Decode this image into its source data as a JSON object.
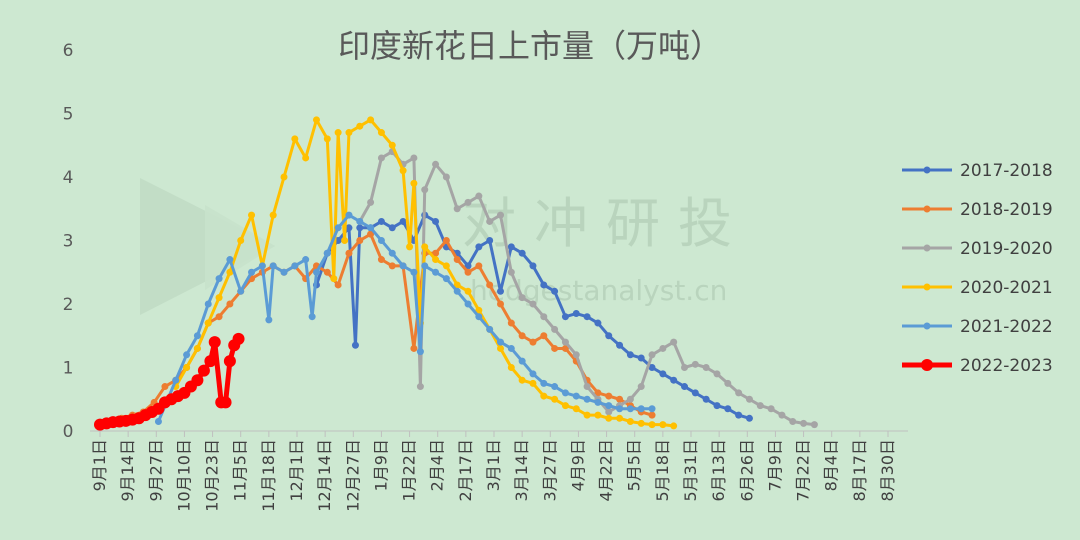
{
  "chart_data": {
    "type": "line",
    "title": "印度新花日上市量（万吨）",
    "xlabel": "",
    "ylabel": "",
    "ylim": [
      0,
      6
    ],
    "yticks": [
      "0",
      "1",
      "2",
      "3",
      "4",
      "5",
      "6"
    ],
    "x_tick_labels": [
      "9月1日",
      "9月14日",
      "9月27日",
      "10月10日",
      "10月23日",
      "11月5日",
      "11月18日",
      "12月1日",
      "12月14日",
      "12月27日",
      "1月9日",
      "1月22日",
      "2月4日",
      "2月17日",
      "3月1日",
      "3月14日",
      "3月27日",
      "4月9日",
      "4月22日",
      "5月5日",
      "5月18日",
      "5月31日",
      "6月13日",
      "6月26日",
      "7月9日",
      "7月22日",
      "8月4日",
      "8月17日",
      "8月30日"
    ],
    "x_unit": "day index counted from 9月1日 (0 = 9月1日, 13 = 9月14日, …)",
    "legend_position": "right",
    "grid": false,
    "series": [
      {
        "name": "2017-2018",
        "color": "#4472c4",
        "linewidth": 3,
        "marker": 7,
        "points": [
          [
            100,
            2.3
          ],
          [
            105,
            2.8
          ],
          [
            110,
            3.0
          ],
          [
            115,
            3.2
          ],
          [
            118,
            1.35
          ],
          [
            120,
            3.2
          ],
          [
            125,
            3.2
          ],
          [
            130,
            3.3
          ],
          [
            135,
            3.2
          ],
          [
            140,
            3.3
          ],
          [
            145,
            3.0
          ],
          [
            150,
            3.4
          ],
          [
            155,
            3.3
          ],
          [
            160,
            2.9
          ],
          [
            165,
            2.8
          ],
          [
            170,
            2.6
          ],
          [
            175,
            2.9
          ],
          [
            180,
            3.0
          ],
          [
            185,
            2.2
          ],
          [
            190,
            2.9
          ],
          [
            195,
            2.8
          ],
          [
            200,
            2.6
          ],
          [
            205,
            2.3
          ],
          [
            210,
            2.2
          ],
          [
            215,
            1.8
          ],
          [
            220,
            1.85
          ],
          [
            225,
            1.8
          ],
          [
            230,
            1.7
          ],
          [
            235,
            1.5
          ],
          [
            240,
            1.35
          ],
          [
            245,
            1.2
          ],
          [
            250,
            1.15
          ],
          [
            255,
            1.0
          ],
          [
            260,
            0.9
          ],
          [
            265,
            0.8
          ],
          [
            270,
            0.7
          ],
          [
            275,
            0.6
          ],
          [
            280,
            0.5
          ],
          [
            285,
            0.4
          ],
          [
            290,
            0.35
          ],
          [
            295,
            0.25
          ],
          [
            300,
            0.2
          ]
        ]
      },
      {
        "name": "2018-2019",
        "color": "#ed7d31",
        "linewidth": 3,
        "marker": 7,
        "points": [
          [
            5,
            0.15
          ],
          [
            10,
            0.2
          ],
          [
            15,
            0.25
          ],
          [
            20,
            0.3
          ],
          [
            25,
            0.45
          ],
          [
            30,
            0.7
          ],
          [
            35,
            0.8
          ],
          [
            40,
            1.0
          ],
          [
            45,
            1.3
          ],
          [
            50,
            1.7
          ],
          [
            55,
            1.8
          ],
          [
            60,
            2.0
          ],
          [
            65,
            2.2
          ],
          [
            70,
            2.4
          ],
          [
            75,
            2.5
          ],
          [
            80,
            2.6
          ],
          [
            85,
            2.5
          ],
          [
            90,
            2.6
          ],
          [
            95,
            2.4
          ],
          [
            100,
            2.6
          ],
          [
            105,
            2.5
          ],
          [
            110,
            2.3
          ],
          [
            115,
            2.8
          ],
          [
            120,
            3.0
          ],
          [
            125,
            3.1
          ],
          [
            130,
            2.7
          ],
          [
            135,
            2.6
          ],
          [
            140,
            2.6
          ],
          [
            145,
            1.3
          ],
          [
            150,
            2.8
          ],
          [
            155,
            2.8
          ],
          [
            160,
            3.0
          ],
          [
            165,
            2.7
          ],
          [
            170,
            2.5
          ],
          [
            175,
            2.6
          ],
          [
            180,
            2.3
          ],
          [
            185,
            2.0
          ],
          [
            190,
            1.7
          ],
          [
            195,
            1.5
          ],
          [
            200,
            1.4
          ],
          [
            205,
            1.5
          ],
          [
            210,
            1.3
          ],
          [
            215,
            1.3
          ],
          [
            220,
            1.1
          ],
          [
            225,
            0.8
          ],
          [
            230,
            0.6
          ],
          [
            235,
            0.55
          ],
          [
            240,
            0.5
          ],
          [
            245,
            0.4
          ],
          [
            250,
            0.3
          ],
          [
            255,
            0.25
          ]
        ]
      },
      {
        "name": "2019-2020",
        "color": "#a5a5a5",
        "linewidth": 3,
        "marker": 7,
        "points": [
          [
            120,
            3.3
          ],
          [
            125,
            3.6
          ],
          [
            130,
            4.3
          ],
          [
            135,
            4.4
          ],
          [
            140,
            4.2
          ],
          [
            145,
            4.3
          ],
          [
            148,
            0.7
          ],
          [
            150,
            3.8
          ],
          [
            155,
            4.2
          ],
          [
            160,
            4.0
          ],
          [
            165,
            3.5
          ],
          [
            170,
            3.6
          ],
          [
            175,
            3.7
          ],
          [
            180,
            3.3
          ],
          [
            185,
            3.4
          ],
          [
            190,
            2.5
          ],
          [
            195,
            2.1
          ],
          [
            200,
            2.0
          ],
          [
            205,
            1.8
          ],
          [
            210,
            1.6
          ],
          [
            215,
            1.4
          ],
          [
            220,
            1.2
          ],
          [
            225,
            0.7
          ],
          [
            230,
            0.5
          ],
          [
            235,
            0.3
          ],
          [
            240,
            0.4
          ],
          [
            245,
            0.5
          ],
          [
            250,
            0.7
          ],
          [
            255,
            1.2
          ],
          [
            260,
            1.3
          ],
          [
            265,
            1.4
          ],
          [
            270,
            1.0
          ],
          [
            275,
            1.05
          ],
          [
            280,
            1.0
          ],
          [
            285,
            0.9
          ],
          [
            290,
            0.75
          ],
          [
            295,
            0.6
          ],
          [
            300,
            0.5
          ],
          [
            305,
            0.4
          ],
          [
            310,
            0.35
          ],
          [
            315,
            0.25
          ],
          [
            320,
            0.15
          ],
          [
            325,
            0.12
          ],
          [
            330,
            0.1
          ]
        ]
      },
      {
        "name": "2020-2021",
        "color": "#ffc000",
        "linewidth": 3,
        "marker": 7,
        "points": [
          [
            35,
            0.7
          ],
          [
            40,
            1.0
          ],
          [
            45,
            1.3
          ],
          [
            50,
            1.7
          ],
          [
            55,
            2.1
          ],
          [
            60,
            2.5
          ],
          [
            65,
            3.0
          ],
          [
            70,
            3.4
          ],
          [
            75,
            2.6
          ],
          [
            80,
            3.4
          ],
          [
            85,
            4.0
          ],
          [
            90,
            4.6
          ],
          [
            95,
            4.3
          ],
          [
            100,
            4.9
          ],
          [
            105,
            4.6
          ],
          [
            108,
            2.4
          ],
          [
            110,
            4.7
          ],
          [
            113,
            3.0
          ],
          [
            115,
            4.7
          ],
          [
            120,
            4.8
          ],
          [
            125,
            4.9
          ],
          [
            130,
            4.7
          ],
          [
            135,
            4.5
          ],
          [
            140,
            4.1
          ],
          [
            143,
            2.9
          ],
          [
            145,
            3.9
          ],
          [
            148,
            1.7
          ],
          [
            150,
            2.9
          ],
          [
            155,
            2.7
          ],
          [
            160,
            2.6
          ],
          [
            165,
            2.3
          ],
          [
            170,
            2.2
          ],
          [
            175,
            1.9
          ],
          [
            180,
            1.6
          ],
          [
            185,
            1.3
          ],
          [
            190,
            1.0
          ],
          [
            195,
            0.8
          ],
          [
            200,
            0.75
          ],
          [
            205,
            0.55
          ],
          [
            210,
            0.5
          ],
          [
            215,
            0.4
          ],
          [
            220,
            0.35
          ],
          [
            225,
            0.25
          ],
          [
            230,
            0.25
          ],
          [
            235,
            0.2
          ],
          [
            240,
            0.2
          ],
          [
            245,
            0.15
          ],
          [
            250,
            0.12
          ],
          [
            255,
            0.1
          ],
          [
            260,
            0.1
          ],
          [
            265,
            0.08
          ]
        ]
      },
      {
        "name": "2021-2022",
        "color": "#5b9bd5",
        "linewidth": 3,
        "marker": 7,
        "points": [
          [
            27,
            0.15
          ],
          [
            35,
            0.8
          ],
          [
            40,
            1.2
          ],
          [
            45,
            1.5
          ],
          [
            50,
            2.0
          ],
          [
            55,
            2.4
          ],
          [
            60,
            2.7
          ],
          [
            65,
            2.2
          ],
          [
            70,
            2.5
          ],
          [
            75,
            2.6
          ],
          [
            78,
            1.75
          ],
          [
            80,
            2.6
          ],
          [
            85,
            2.5
          ],
          [
            90,
            2.6
          ],
          [
            95,
            2.7
          ],
          [
            98,
            1.8
          ],
          [
            100,
            2.5
          ],
          [
            105,
            2.8
          ],
          [
            110,
            3.2
          ],
          [
            115,
            3.4
          ],
          [
            120,
            3.3
          ],
          [
            125,
            3.2
          ],
          [
            130,
            3.0
          ],
          [
            135,
            2.8
          ],
          [
            140,
            2.6
          ],
          [
            145,
            2.5
          ],
          [
            148,
            1.25
          ],
          [
            150,
            2.6
          ],
          [
            155,
            2.5
          ],
          [
            160,
            2.4
          ],
          [
            165,
            2.2
          ],
          [
            170,
            2.0
          ],
          [
            175,
            1.8
          ],
          [
            180,
            1.6
          ],
          [
            185,
            1.4
          ],
          [
            190,
            1.3
          ],
          [
            195,
            1.1
          ],
          [
            200,
            0.9
          ],
          [
            205,
            0.75
          ],
          [
            210,
            0.7
          ],
          [
            215,
            0.6
          ],
          [
            220,
            0.55
          ],
          [
            225,
            0.5
          ],
          [
            230,
            0.45
          ],
          [
            235,
            0.4
          ],
          [
            240,
            0.35
          ],
          [
            245,
            0.35
          ],
          [
            250,
            0.35
          ],
          [
            255,
            0.35
          ]
        ]
      },
      {
        "name": "2022-2023",
        "color": "#ff0000",
        "linewidth": 5,
        "marker": 12,
        "points": [
          [
            0,
            0.1
          ],
          [
            3,
            0.12
          ],
          [
            6,
            0.14
          ],
          [
            9,
            0.15
          ],
          [
            12,
            0.16
          ],
          [
            15,
            0.18
          ],
          [
            18,
            0.2
          ],
          [
            21,
            0.25
          ],
          [
            24,
            0.3
          ],
          [
            27,
            0.35
          ],
          [
            30,
            0.45
          ],
          [
            33,
            0.5
          ],
          [
            36,
            0.55
          ],
          [
            39,
            0.6
          ],
          [
            42,
            0.7
          ],
          [
            45,
            0.8
          ],
          [
            48,
            0.95
          ],
          [
            51,
            1.1
          ],
          [
            53,
            1.4
          ],
          [
            56,
            0.45
          ],
          [
            58,
            0.45
          ],
          [
            60,
            1.1
          ],
          [
            62,
            1.35
          ],
          [
            64,
            1.45
          ]
        ]
      }
    ]
  },
  "watermark": {
    "brand": "对冲研投",
    "url": "hedgestanalyst.cn"
  }
}
